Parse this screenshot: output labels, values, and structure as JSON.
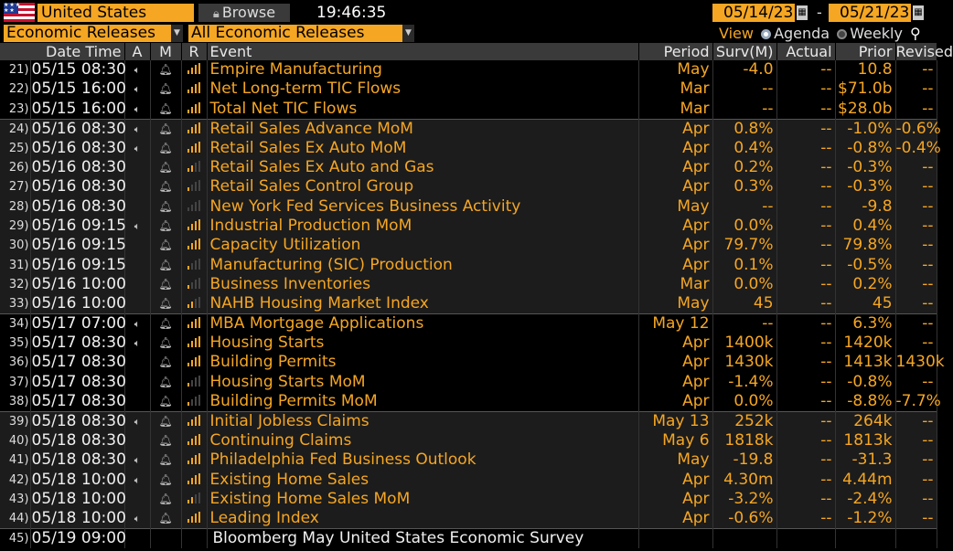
{
  "toolbar": {
    "country": "United States",
    "browse_label": "Browse",
    "time": "19:46:35",
    "date_start": "05/14/23",
    "date_end": "05/21/23",
    "date_separator": "-",
    "category": "Economic Releases",
    "release_filter": "All Economic Releases",
    "view_label": "View",
    "view_options": [
      "Agenda",
      "Weekly"
    ],
    "view_selected": "Agenda"
  },
  "columns": [
    "Date Time",
    "A",
    "M",
    "R",
    "Event",
    "Period",
    "Surv(M)",
    "Actual",
    "Prior",
    "Revised"
  ],
  "colors": {
    "accent": "#f5a623",
    "header_bg": "#3a3a3a",
    "row_shade": "#1c1c1c"
  },
  "rows": [
    {
      "idx": "21)",
      "dt": "05/15 08:30",
      "alert": true,
      "rel": 4,
      "event": "Empire Manufacturing",
      "period": "May",
      "surv": "-4.0",
      "actual": "--",
      "prior": "10.8",
      "revised": "--",
      "shade": false,
      "sep": false
    },
    {
      "idx": "22)",
      "dt": "05/15 16:00",
      "alert": true,
      "rel": 4,
      "event": "Net Long-term TIC Flows",
      "period": "Mar",
      "surv": "--",
      "actual": "--",
      "prior": "$71.0b",
      "revised": "--",
      "shade": false,
      "sep": false
    },
    {
      "idx": "23)",
      "dt": "05/15 16:00",
      "alert": true,
      "rel": 4,
      "event": "Total Net TIC Flows",
      "period": "Mar",
      "surv": "--",
      "actual": "--",
      "prior": "$28.0b",
      "revised": "--",
      "shade": false,
      "sep": false
    },
    {
      "idx": "24)",
      "dt": "05/16 08:30",
      "alert": true,
      "rel": 4,
      "event": "Retail Sales Advance MoM",
      "period": "Apr",
      "surv": "0.8%",
      "actual": "--",
      "prior": "-1.0%",
      "revised": "-0.6%",
      "shade": true,
      "sep": true
    },
    {
      "idx": "25)",
      "dt": "05/16 08:30",
      "alert": true,
      "rel": 4,
      "event": "Retail Sales Ex Auto MoM",
      "period": "Apr",
      "surv": "0.4%",
      "actual": "--",
      "prior": "-0.8%",
      "revised": "-0.4%",
      "shade": true,
      "sep": false
    },
    {
      "idx": "26)",
      "dt": "05/16 08:30",
      "alert": false,
      "rel": 2,
      "event": "Retail Sales Ex Auto and Gas",
      "period": "Apr",
      "surv": "0.2%",
      "actual": "--",
      "prior": "-0.3%",
      "revised": "--",
      "shade": true,
      "sep": false
    },
    {
      "idx": "27)",
      "dt": "05/16 08:30",
      "alert": false,
      "rel": 1,
      "event": "Retail Sales Control Group",
      "period": "Apr",
      "surv": "0.3%",
      "actual": "--",
      "prior": "-0.3%",
      "revised": "--",
      "shade": true,
      "sep": false
    },
    {
      "idx": "28)",
      "dt": "05/16 08:30",
      "alert": false,
      "rel": 0,
      "event": "New York Fed Services Business Activity",
      "period": "May",
      "surv": "--",
      "actual": "--",
      "prior": "-9.8",
      "revised": "--",
      "shade": true,
      "sep": false
    },
    {
      "idx": "29)",
      "dt": "05/16 09:15",
      "alert": true,
      "rel": 4,
      "event": "Industrial Production MoM",
      "period": "Apr",
      "surv": "0.0%",
      "actual": "--",
      "prior": "0.4%",
      "revised": "--",
      "shade": true,
      "sep": false
    },
    {
      "idx": "30)",
      "dt": "05/16 09:15",
      "alert": false,
      "rel": 4,
      "event": "Capacity Utilization",
      "period": "Apr",
      "surv": "79.7%",
      "actual": "--",
      "prior": "79.8%",
      "revised": "--",
      "shade": true,
      "sep": false
    },
    {
      "idx": "31)",
      "dt": "05/16 09:15",
      "alert": false,
      "rel": 1,
      "event": "Manufacturing (SIC) Production",
      "period": "Apr",
      "surv": "0.1%",
      "actual": "--",
      "prior": "-0.5%",
      "revised": "--",
      "shade": true,
      "sep": false
    },
    {
      "idx": "32)",
      "dt": "05/16 10:00",
      "alert": false,
      "rel": 1,
      "event": "Business Inventories",
      "period": "Mar",
      "surv": "0.0%",
      "actual": "--",
      "prior": "0.2%",
      "revised": "--",
      "shade": true,
      "sep": false
    },
    {
      "idx": "33)",
      "dt": "05/16 10:00",
      "alert": false,
      "rel": 2,
      "event": "NAHB Housing Market Index",
      "period": "May",
      "surv": "45",
      "actual": "--",
      "prior": "45",
      "revised": "--",
      "shade": true,
      "sep": false
    },
    {
      "idx": "34)",
      "dt": "05/17 07:00",
      "alert": true,
      "rel": 4,
      "event": "MBA Mortgage Applications",
      "period": "May 12",
      "surv": "--",
      "actual": "--",
      "prior": "6.3%",
      "revised": "--",
      "shade": false,
      "sep": true
    },
    {
      "idx": "35)",
      "dt": "05/17 08:30",
      "alert": true,
      "rel": 4,
      "event": "Housing Starts",
      "period": "Apr",
      "surv": "1400k",
      "actual": "--",
      "prior": "1420k",
      "revised": "--",
      "shade": false,
      "sep": false
    },
    {
      "idx": "36)",
      "dt": "05/17 08:30",
      "alert": false,
      "rel": 4,
      "event": "Building Permits",
      "period": "Apr",
      "surv": "1430k",
      "actual": "--",
      "prior": "1413k",
      "revised": "1430k",
      "shade": false,
      "sep": false
    },
    {
      "idx": "37)",
      "dt": "05/17 08:30",
      "alert": false,
      "rel": 1,
      "event": "Housing Starts MoM",
      "period": "Apr",
      "surv": "-1.4%",
      "actual": "--",
      "prior": "-0.8%",
      "revised": "--",
      "shade": false,
      "sep": false
    },
    {
      "idx": "38)",
      "dt": "05/17 08:30",
      "alert": false,
      "rel": 1,
      "event": "Building Permits MoM",
      "period": "Apr",
      "surv": "0.0%",
      "actual": "--",
      "prior": "-8.8%",
      "revised": "-7.7%",
      "shade": false,
      "sep": false
    },
    {
      "idx": "39)",
      "dt": "05/18 08:30",
      "alert": true,
      "rel": 4,
      "event": "Initial Jobless Claims",
      "period": "May 13",
      "surv": "252k",
      "actual": "--",
      "prior": "264k",
      "revised": "--",
      "shade": true,
      "sep": true
    },
    {
      "idx": "40)",
      "dt": "05/18 08:30",
      "alert": false,
      "rel": 4,
      "event": "Continuing Claims",
      "period": "May 6",
      "surv": "1818k",
      "actual": "--",
      "prior": "1813k",
      "revised": "--",
      "shade": true,
      "sep": false
    },
    {
      "idx": "41)",
      "dt": "05/18 08:30",
      "alert": true,
      "rel": 4,
      "event": "Philadelphia Fed Business Outlook",
      "period": "May",
      "surv": "-19.8",
      "actual": "--",
      "prior": "-31.3",
      "revised": "--",
      "shade": true,
      "sep": false
    },
    {
      "idx": "42)",
      "dt": "05/18 10:00",
      "alert": true,
      "rel": 4,
      "event": "Existing Home Sales",
      "period": "Apr",
      "surv": "4.30m",
      "actual": "--",
      "prior": "4.44m",
      "revised": "--",
      "shade": true,
      "sep": false
    },
    {
      "idx": "43)",
      "dt": "05/18 10:00",
      "alert": false,
      "rel": 2,
      "event": "Existing Home Sales MoM",
      "period": "Apr",
      "surv": "-3.2%",
      "actual": "--",
      "prior": "-2.4%",
      "revised": "--",
      "shade": true,
      "sep": false
    },
    {
      "idx": "44)",
      "dt": "05/18 10:00",
      "alert": true,
      "rel": 4,
      "event": "Leading Index",
      "period": "Apr",
      "surv": "-0.6%",
      "actual": "--",
      "prior": "-1.2%",
      "revised": "--",
      "shade": true,
      "sep": false
    },
    {
      "idx": "45)",
      "dt": "05/19 09:00",
      "alert": false,
      "rel": -1,
      "event": "Bloomberg May United States Economic Survey",
      "period": "",
      "surv": "",
      "actual": "",
      "prior": "",
      "revised": "",
      "shade": false,
      "sep": true,
      "special": true
    }
  ]
}
